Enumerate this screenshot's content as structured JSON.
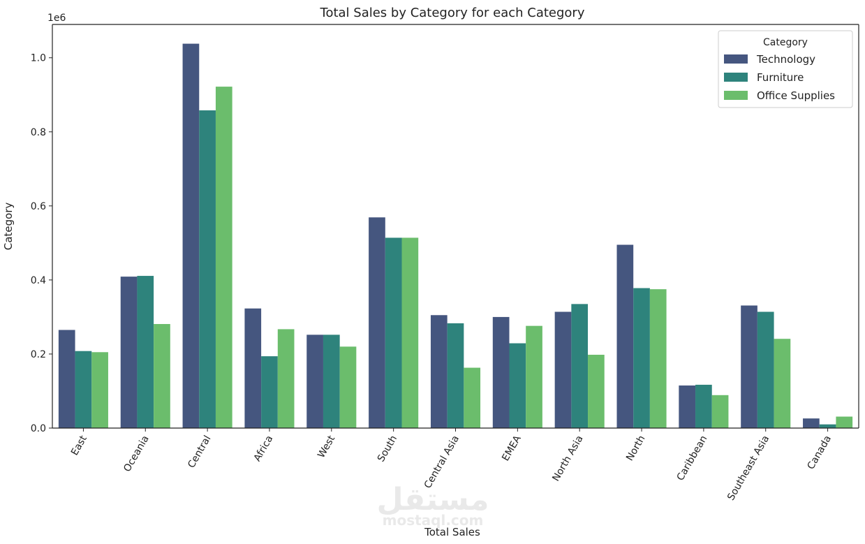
{
  "chart_data": {
    "type": "bar",
    "title": "Total Sales by Category for each Category",
    "xlabel": "Total Sales",
    "ylabel": "Category",
    "y_offset_label": "1e6",
    "ylim": [
      0,
      1.09
    ],
    "yticks": [
      0.0,
      0.2,
      0.4,
      0.6,
      0.8,
      1.0
    ],
    "ytick_labels": [
      "0.0",
      "0.2",
      "0.4",
      "0.6",
      "0.8",
      "1.0"
    ],
    "grid": false,
    "legend": {
      "title": "Category",
      "placement": "top-right"
    },
    "categories": [
      "East",
      "Oceania",
      "Central",
      "Africa",
      "West",
      "South",
      "Central Asia",
      "EMEA",
      "North Asia",
      "North",
      "Caribbean",
      "Southeast Asia",
      "Canada"
    ],
    "series": [
      {
        "name": "Technology",
        "color": "#45567f",
        "values": [
          0.265,
          0.409,
          1.038,
          0.323,
          0.252,
          0.569,
          0.305,
          0.3,
          0.314,
          0.495,
          0.115,
          0.331,
          0.026
        ]
      },
      {
        "name": "Furniture",
        "color": "#2e837c",
        "values": [
          0.208,
          0.411,
          0.858,
          0.194,
          0.252,
          0.514,
          0.283,
          0.229,
          0.335,
          0.378,
          0.117,
          0.314,
          0.01
        ]
      },
      {
        "name": "Office Supplies",
        "color": "#6bbd6c",
        "values": [
          0.205,
          0.281,
          0.922,
          0.267,
          0.22,
          0.514,
          0.163,
          0.276,
          0.198,
          0.375,
          0.089,
          0.241,
          0.031
        ]
      }
    ]
  },
  "watermark": {
    "arabic": "مستقل",
    "latin": "mostaql.com"
  }
}
